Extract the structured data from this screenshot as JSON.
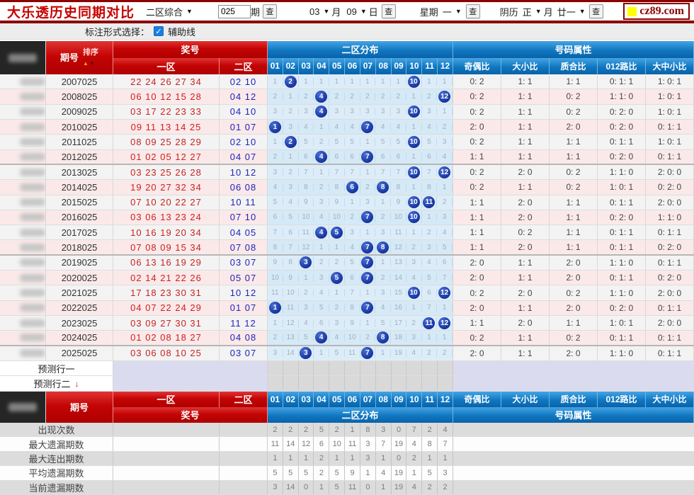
{
  "topbar": {
    "title": "大乐透历史同期对比",
    "mode_select": "二区综合",
    "period_input": "025",
    "period_suffix": "期",
    "search_btn": "查",
    "month_value": "03",
    "month_label": "月",
    "day_value": "09",
    "day_label": "日",
    "week_label": "星期",
    "week_value": "一",
    "lunar_label": "阴历",
    "lunar_month_value": "正",
    "lunar_month_label": "月",
    "lunar_day_value": "廿一",
    "logo_text": "cz89.com"
  },
  "toolbar": {
    "label": "标注形式选择：",
    "checkbox_label": "辅助线",
    "checkbox_checked": true,
    "check_glyph": "✓"
  },
  "colors": {
    "accent_red": "#c40404",
    "header_blue": "#1077c0",
    "ball_blue": "#15339e",
    "pink_row": "#fbe9e9",
    "dist_bg": "#d9ecf8"
  },
  "table": {
    "headers": {
      "period": "期号",
      "sort": "排序",
      "prize": "奖号",
      "zone1": "一区",
      "zone2": "二区",
      "dist": "二区分布",
      "attrs": "号码属性",
      "dist_cols": [
        "01",
        "02",
        "03",
        "04",
        "05",
        "06",
        "07",
        "08",
        "09",
        "10",
        "11",
        "12"
      ],
      "attr_cols": [
        "奇偶比",
        "大小比",
        "质合比",
        "012路比",
        "大中小比"
      ]
    },
    "rows": [
      {
        "period": "2007025",
        "zone1": "22 24 26 27 34",
        "zone2": "02 10",
        "dist": [
          "1",
          "B",
          "1",
          "1",
          "1",
          "1",
          "1",
          "1",
          "1",
          "B",
          "1",
          "1"
        ],
        "attrs": [
          "0: 2",
          "1: 1",
          "1: 1",
          "0: 1: 1",
          "1: 0: 1"
        ]
      },
      {
        "period": "2008025",
        "zone1": "06 10 12 15 28",
        "zone2": "04 12",
        "dist": [
          "2",
          "1",
          "2",
          "B",
          "2",
          "2",
          "2",
          "2",
          "2",
          "1",
          "2",
          "B"
        ],
        "attrs": [
          "0: 2",
          "1: 1",
          "0: 2",
          "1: 1: 0",
          "1: 0: 1"
        ]
      },
      {
        "period": "2009025",
        "zone1": "03 17 22 23 33",
        "zone2": "04 10",
        "dist": [
          "3",
          "2",
          "3",
          "B",
          "3",
          "3",
          "3",
          "3",
          "3",
          "B",
          "3",
          "1"
        ],
        "attrs": [
          "0: 2",
          "1: 1",
          "0: 2",
          "0: 2: 0",
          "1: 0: 1"
        ]
      },
      {
        "period": "2010025",
        "zone1": "09 11 13 14 25",
        "zone2": "01 07",
        "dist": [
          "B",
          "3",
          "4",
          "1",
          "4",
          "4",
          "B",
          "4",
          "4",
          "1",
          "4",
          "2"
        ],
        "attrs": [
          "2: 0",
          "1: 1",
          "2: 0",
          "0: 2: 0",
          "0: 1: 1"
        ]
      },
      {
        "period": "2011025",
        "zone1": "08 09 25 28 29",
        "zone2": "02 10",
        "dist": [
          "1",
          "B",
          "5",
          "2",
          "5",
          "5",
          "1",
          "5",
          "5",
          "B",
          "5",
          "3"
        ],
        "attrs": [
          "0: 2",
          "1: 1",
          "1: 1",
          "0: 1: 1",
          "1: 0: 1"
        ]
      },
      {
        "period": "2012025",
        "zone1": "01 02 05 12 27",
        "zone2": "04 07",
        "dist": [
          "2",
          "1",
          "6",
          "B",
          "6",
          "6",
          "B",
          "6",
          "6",
          "1",
          "6",
          "4"
        ],
        "attrs": [
          "1: 1",
          "1: 1",
          "1: 1",
          "0: 2: 0",
          "0: 1: 1"
        ]
      },
      {
        "period": "2013025",
        "zone1": "03 23 25 26 28",
        "zone2": "10 12",
        "dist": [
          "3",
          "2",
          "7",
          "1",
          "7",
          "7",
          "1",
          "7",
          "7",
          "B",
          "7",
          "B"
        ],
        "attrs": [
          "0: 2",
          "2: 0",
          "0: 2",
          "1: 1: 0",
          "2: 0: 0"
        ]
      },
      {
        "period": "2014025",
        "zone1": "19 20 27 32 34",
        "zone2": "06 08",
        "dist": [
          "4",
          "3",
          "8",
          "2",
          "8",
          "B",
          "2",
          "B",
          "8",
          "1",
          "8",
          "1"
        ],
        "attrs": [
          "0: 2",
          "1: 1",
          "0: 2",
          "1: 0: 1",
          "0: 2: 0"
        ]
      },
      {
        "period": "2015025",
        "zone1": "07 10 20 22 27",
        "zone2": "10 11",
        "dist": [
          "5",
          "4",
          "9",
          "3",
          "9",
          "1",
          "3",
          "1",
          "9",
          "B",
          "B",
          "2"
        ],
        "attrs": [
          "1: 1",
          "2: 0",
          "1: 1",
          "0: 1: 1",
          "2: 0: 0"
        ]
      },
      {
        "period": "2016025",
        "zone1": "03 06 13 23 24",
        "zone2": "07 10",
        "dist": [
          "6",
          "5",
          "10",
          "4",
          "10",
          "2",
          "B",
          "2",
          "10",
          "B",
          "1",
          "3"
        ],
        "attrs": [
          "1: 1",
          "2: 0",
          "1: 1",
          "0: 2: 0",
          "1: 1: 0"
        ]
      },
      {
        "period": "2017025",
        "zone1": "10 16 19 20 34",
        "zone2": "04 05",
        "dist": [
          "7",
          "6",
          "11",
          "B",
          "B",
          "3",
          "1",
          "3",
          "11",
          "1",
          "2",
          "4"
        ],
        "attrs": [
          "1: 1",
          "0: 2",
          "1: 1",
          "0: 1: 1",
          "0: 1: 1"
        ]
      },
      {
        "period": "2018025",
        "zone1": "07 08 09 15 34",
        "zone2": "07 08",
        "dist": [
          "8",
          "7",
          "12",
          "1",
          "1",
          "4",
          "B",
          "B",
          "12",
          "2",
          "3",
          "5"
        ],
        "attrs": [
          "1: 1",
          "2: 0",
          "1: 1",
          "0: 1: 1",
          "0: 2: 0"
        ]
      },
      {
        "period": "2019025",
        "zone1": "06 13 16 19 29",
        "zone2": "03 07",
        "dist": [
          "9",
          "8",
          "B",
          "2",
          "2",
          "5",
          "B",
          "1",
          "13",
          "3",
          "4",
          "6"
        ],
        "attrs": [
          "2: 0",
          "1: 1",
          "2: 0",
          "1: 1: 0",
          "0: 1: 1"
        ]
      },
      {
        "period": "2020025",
        "zone1": "02 14 21 22 26",
        "zone2": "05 07",
        "dist": [
          "10",
          "9",
          "1",
          "3",
          "B",
          "6",
          "B",
          "2",
          "14",
          "4",
          "5",
          "7"
        ],
        "attrs": [
          "2: 0",
          "1: 1",
          "2: 0",
          "0: 1: 1",
          "0: 2: 0"
        ]
      },
      {
        "period": "2021025",
        "zone1": "17 18 23 30 31",
        "zone2": "10 12",
        "dist": [
          "11",
          "10",
          "2",
          "4",
          "1",
          "7",
          "1",
          "3",
          "15",
          "B",
          "6",
          "B"
        ],
        "attrs": [
          "0: 2",
          "2: 0",
          "0: 2",
          "1: 1: 0",
          "2: 0: 0"
        ]
      },
      {
        "period": "2022025",
        "zone1": "04 07 22 24 29",
        "zone2": "01 07",
        "dist": [
          "B",
          "11",
          "3",
          "5",
          "2",
          "8",
          "B",
          "4",
          "16",
          "1",
          "7",
          "1"
        ],
        "attrs": [
          "2: 0",
          "1: 1",
          "2: 0",
          "0: 2: 0",
          "0: 1: 1"
        ]
      },
      {
        "period": "2023025",
        "zone1": "03 09 27 30 31",
        "zone2": "11 12",
        "dist": [
          "1",
          "12",
          "4",
          "6",
          "3",
          "9",
          "1",
          "5",
          "17",
          "2",
          "B",
          "B"
        ],
        "attrs": [
          "1: 1",
          "2: 0",
          "1: 1",
          "1: 0: 1",
          "2: 0: 0"
        ]
      },
      {
        "period": "2024025",
        "zone1": "01 02 08 18 27",
        "zone2": "04 08",
        "dist": [
          "2",
          "13",
          "5",
          "B",
          "4",
          "10",
          "2",
          "B",
          "18",
          "3",
          "1",
          "1"
        ],
        "attrs": [
          "0: 2",
          "1: 1",
          "0: 2",
          "0: 1: 1",
          "0: 1: 1"
        ]
      },
      {
        "period": "2025025",
        "zone1": "03 06 08 10 25",
        "zone2": "03 07",
        "dist": [
          "3",
          "14",
          "B",
          "1",
          "5",
          "11",
          "B",
          "1",
          "19",
          "4",
          "2",
          "2"
        ],
        "attrs": [
          "2: 0",
          "1: 1",
          "2: 0",
          "1: 1: 0",
          "0: 1: 1"
        ]
      }
    ],
    "group_separators_after": [
      5,
      11,
      17
    ],
    "prediction_rows": [
      {
        "label": "预测行一",
        "arrow": ""
      },
      {
        "label": "预测行二",
        "arrow": "↓"
      }
    ],
    "stats": [
      {
        "label": "出现次数",
        "values": [
          "2",
          "2",
          "2",
          "5",
          "2",
          "1",
          "8",
          "3",
          "0",
          "7",
          "2",
          "4"
        ]
      },
      {
        "label": "最大遗漏期数",
        "values": [
          "11",
          "14",
          "12",
          "6",
          "10",
          "11",
          "3",
          "7",
          "19",
          "4",
          "8",
          "7"
        ]
      },
      {
        "label": "最大连出期数",
        "values": [
          "1",
          "1",
          "1",
          "2",
          "1",
          "1",
          "3",
          "1",
          "0",
          "2",
          "1",
          "1"
        ]
      },
      {
        "label": "平均遗漏期数",
        "values": [
          "5",
          "5",
          "5",
          "2",
          "5",
          "9",
          "1",
          "4",
          "19",
          "1",
          "5",
          "3"
        ]
      },
      {
        "label": "当前遗漏期数",
        "values": [
          "3",
          "14",
          "0",
          "1",
          "5",
          "11",
          "0",
          "1",
          "19",
          "4",
          "2",
          "2"
        ]
      }
    ]
  }
}
